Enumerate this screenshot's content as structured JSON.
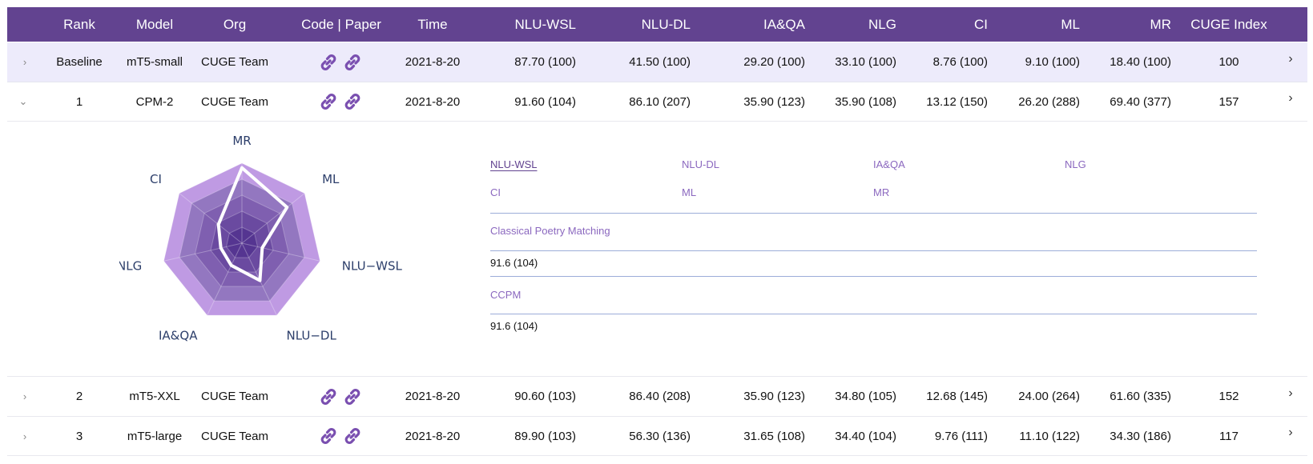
{
  "header": {
    "rank": "Rank",
    "model": "Model",
    "org": "Org",
    "code_paper": "Code | Paper",
    "time": "Time",
    "nlu_wsl": "NLU-WSL",
    "nlu_dl": "NLU-DL",
    "ia_qa": "IA&QA",
    "nlg": "NLG",
    "ci": "CI",
    "ml": "ML",
    "mr": "MR",
    "cuge_index": "CUGE Index"
  },
  "rows": [
    {
      "rank": "Baseline",
      "model": "mT5-small",
      "org": "CUGE Team",
      "time": "2021-8-20",
      "nlu_wsl": "87.70 (100)",
      "nlu_dl": "41.50 (100)",
      "ia_qa": "29.20 (100)",
      "nlg": "33.10 (100)",
      "ci": "8.76 (100)",
      "ml": "9.10 (100)",
      "mr": "18.40 (100)",
      "cuge_index": "100",
      "toggle": "›"
    },
    {
      "rank": "1",
      "model": "CPM-2",
      "org": "CUGE Team",
      "time": "2021-8-20",
      "nlu_wsl": "91.60 (104)",
      "nlu_dl": "86.10 (207)",
      "ia_qa": "35.90 (123)",
      "nlg": "35.90 (108)",
      "ci": "13.12 (150)",
      "ml": "26.20 (288)",
      "mr": "69.40 (377)",
      "cuge_index": "157",
      "toggle": "⌄"
    },
    {
      "rank": "2",
      "model": "mT5-XXL",
      "org": "CUGE Team",
      "time": "2021-8-20",
      "nlu_wsl": "90.60 (103)",
      "nlu_dl": "86.40 (208)",
      "ia_qa": "35.90 (123)",
      "nlg": "34.80 (105)",
      "ci": "12.68 (145)",
      "ml": "24.00 (264)",
      "mr": "61.60 (335)",
      "cuge_index": "152",
      "toggle": "›"
    },
    {
      "rank": "3",
      "model": "mT5-large",
      "org": "CUGE Team",
      "time": "2021-8-20",
      "nlu_wsl": "89.90 (103)",
      "nlu_dl": "56.30 (136)",
      "ia_qa": "31.65 (108)",
      "nlg": "34.40 (104)",
      "ci": "9.76 (111)",
      "ml": "11.10 (122)",
      "mr": "34.30 (186)",
      "cuge_index": "117",
      "toggle": "›"
    }
  ],
  "detail": {
    "tabs": [
      "NLU-WSL",
      "NLU-DL",
      "IA&QA",
      "NLG",
      "CI",
      "ML",
      "MR"
    ],
    "active_tab": "NLU-WSL",
    "task_label": "Classical Poetry Matching",
    "task_value": "91.6 (104)",
    "dataset_label": "CCPM",
    "dataset_value": "91.6 (104)"
  },
  "radar": {
    "axes": [
      "MR",
      "ML",
      "NLU−WSL",
      "NLU−DL",
      "IA&QA",
      "NLG",
      "CI"
    ],
    "values": [
      377,
      288,
      104,
      207,
      123,
      108,
      150
    ],
    "max": 400,
    "colors": {
      "outer": "#bf9ae3",
      "ring2": "#9377c0",
      "ring3": "#7f5fb0",
      "ring4": "#6a4aa0",
      "inner": "#553591",
      "line": "#ffffff"
    }
  },
  "colors": {
    "header_bg": "#624390",
    "baseline_bg": "#edebfb",
    "link": "#7a4fb0"
  }
}
